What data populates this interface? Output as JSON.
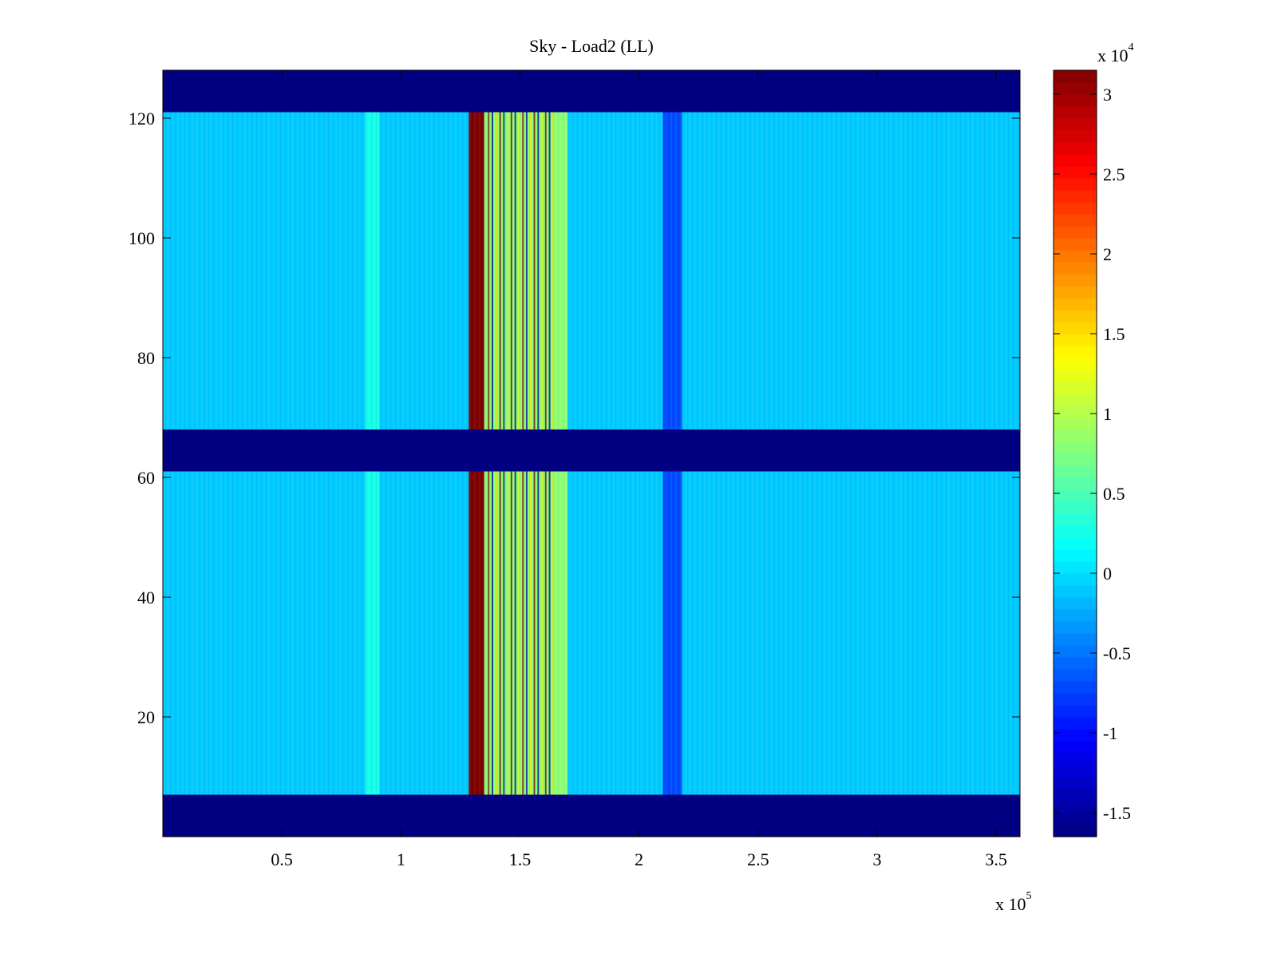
{
  "chart_data": {
    "type": "heatmap",
    "title": "Sky - Load2 (LL)",
    "xlabel": "",
    "ylabel": "",
    "xlim": [
      0,
      360000
    ],
    "ylim": [
      0,
      128
    ],
    "x_ticks": [
      50000,
      100000,
      150000,
      200000,
      250000,
      300000,
      350000
    ],
    "x_tick_labels": [
      "0.5",
      "1",
      "1.5",
      "2",
      "2.5",
      "3",
      "3.5"
    ],
    "x_multiplier": {
      "base": "x 10",
      "exponent": "5"
    },
    "y_ticks": [
      20,
      40,
      60,
      80,
      100,
      120
    ],
    "y_tick_labels": [
      "20",
      "40",
      "60",
      "80",
      "100",
      "120"
    ],
    "colorbar": {
      "colormap": "jet",
      "clim": [
        -16500,
        31500
      ],
      "ticks": [
        -15000,
        -10000,
        -5000,
        0,
        5000,
        10000,
        15000,
        20000,
        25000,
        30000
      ],
      "tick_labels": [
        "-1.5",
        "-1",
        "-0.5",
        "0",
        "0.5",
        "1",
        "1.5",
        "2",
        "2.5",
        "3"
      ],
      "multiplier": {
        "base": "x 10",
        "exponent": "4"
      }
    },
    "masked_rows": [
      [
        0,
        7
      ],
      [
        61,
        68
      ],
      [
        121,
        128
      ]
    ],
    "features": [
      {
        "x": [
          85000,
          91000
        ],
        "value": 2500
      },
      {
        "x": [
          128500,
          135000
        ],
        "value": 31500
      },
      {
        "x": [
          135000,
          170000
        ],
        "value": 8000
      },
      {
        "x": [
          210000,
          218000
        ],
        "value": -7000
      }
    ],
    "background_value": -1000
  }
}
